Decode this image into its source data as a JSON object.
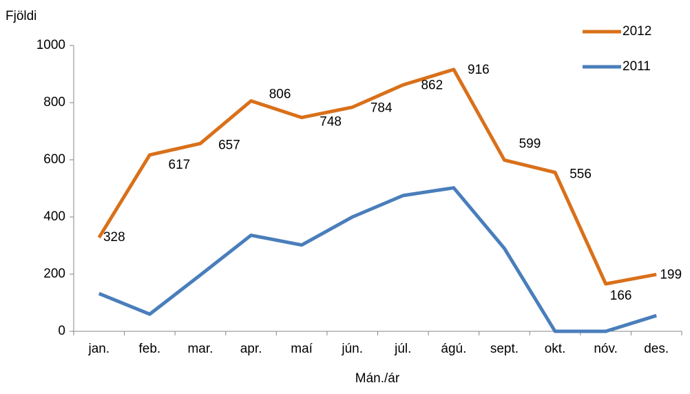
{
  "chart_data": {
    "type": "line",
    "y_label": "Fjöldi",
    "x_label": "Mán./ár",
    "categories": [
      "jan.",
      "feb.",
      "mar.",
      "apr.",
      "maí",
      "jún.",
      "júl.",
      "ágú.",
      "sept.",
      "okt.",
      "nóv.",
      "des."
    ],
    "series": [
      {
        "name": "2012",
        "color": "#d9701a",
        "values": [
          328,
          617,
          657,
          806,
          748,
          784,
          862,
          916,
          599,
          556,
          166,
          199
        ]
      },
      {
        "name": "2011",
        "color": "#4a7ebb",
        "values": [
          132,
          60,
          197,
          336,
          302,
          400,
          475,
          502,
          290,
          0,
          0,
          55
        ]
      }
    ],
    "data_labels_series": 0,
    "ylim": [
      0,
      1000
    ],
    "yticks": [
      0,
      200,
      400,
      600,
      800,
      1000
    ],
    "grid": false,
    "legend": "top-right"
  }
}
